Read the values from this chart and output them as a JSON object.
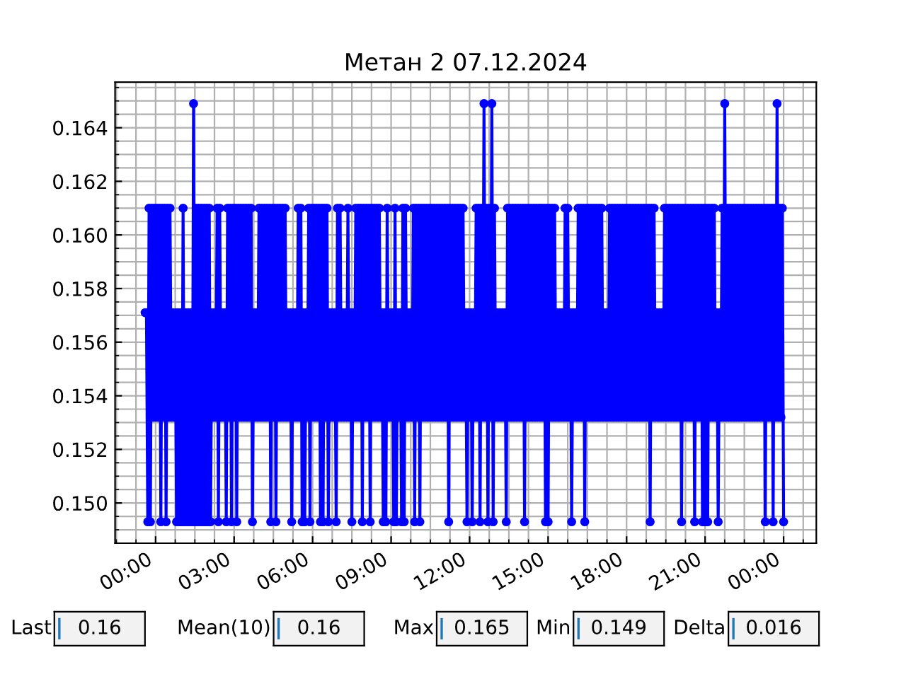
{
  "chart_data": {
    "type": "line",
    "title": "Метан 2 07.12.2024",
    "x": [
      -0.4,
      -0.35,
      -0.3,
      -0.25,
      -0.2,
      -0.15,
      -0.1,
      -0.05,
      0,
      0.05,
      0.1,
      0.15,
      0.2,
      0.25,
      0.3,
      0.35,
      0.4,
      0.45,
      0.5,
      0.55,
      0.6,
      0.65,
      0.7,
      0.75,
      0.8,
      0.85,
      0.9,
      0.95,
      1,
      1.05,
      1.1,
      1.15,
      1.2,
      1.25,
      1.3,
      1.35,
      1.4,
      1.45,
      1.5,
      1.55,
      1.6,
      1.65,
      1.7,
      1.75,
      1.8,
      1.85,
      1.9,
      1.95,
      2,
      2.05,
      2.1,
      2.15,
      2.2,
      2.25,
      2.3,
      2.35,
      2.4,
      2.45,
      2.5,
      2.55,
      2.6,
      2.65,
      2.7,
      2.75,
      2.8,
      2.85,
      2.9,
      2.95,
      3,
      3.05,
      3.1,
      3.15,
      3.2,
      3.25,
      3.3,
      3.35,
      3.4,
      3.45,
      3.5,
      3.55,
      3.6,
      3.65,
      3.7,
      3.75,
      3.8,
      3.85,
      3.9,
      3.95,
      4,
      4.05,
      4.1,
      4.15,
      4.2,
      4.25,
      4.3,
      4.35,
      4.4,
      4.45,
      4.5,
      4.55,
      4.6,
      4.65,
      4.7,
      4.75,
      4.8,
      4.85,
      4.9,
      4.95,
      5,
      5.05,
      5.1,
      5.15,
      5.2,
      5.25,
      5.3,
      5.35,
      5.4,
      5.45,
      5.5,
      5.55,
      5.6,
      5.65,
      5.7,
      5.75,
      5.8,
      5.85,
      5.9,
      5.95,
      6,
      6.05,
      6.1,
      6.15,
      6.2,
      6.25,
      6.3,
      6.35,
      6.4,
      6.45,
      6.5,
      6.55,
      6.6,
      6.65,
      6.7,
      6.75,
      6.8,
      6.85,
      6.9,
      6.95,
      7,
      7.05,
      7.1,
      7.15,
      7.2,
      7.25,
      7.3,
      7.35,
      7.4,
      7.45,
      7.5,
      7.55,
      7.6,
      7.65,
      7.7,
      7.75,
      7.8,
      7.85,
      7.9,
      7.95,
      8,
      8.05,
      8.1,
      8.15,
      8.2,
      8.25,
      8.3,
      8.35,
      8.4,
      8.45,
      8.5,
      8.55,
      8.6,
      8.65,
      8.7,
      8.75,
      8.8,
      8.85,
      8.9,
      8.95,
      9,
      9.05,
      9.1,
      9.15,
      9.2,
      9.25,
      9.3,
      9.35,
      9.4,
      9.45,
      9.5,
      9.55,
      9.6,
      9.65,
      9.7,
      9.75,
      9.8,
      9.85,
      9.9,
      9.95,
      10,
      10.05,
      10.1,
      10.15,
      10.2,
      10.25,
      10.3,
      10.35,
      10.4,
      10.45,
      10.5,
      10.55,
      10.6,
      10.65,
      10.7,
      10.75,
      10.8,
      10.85,
      10.9,
      10.95,
      11,
      11.05,
      11.1,
      11.15,
      11.2,
      11.25,
      11.3,
      11.35,
      11.4,
      11.45,
      11.5,
      11.55,
      11.6,
      11.65,
      11.7,
      11.75,
      11.8,
      11.85,
      11.9,
      11.95,
      12,
      12.05,
      12.1,
      12.15,
      12.2,
      12.25,
      12.3,
      12.35,
      12.4,
      12.45,
      12.5,
      12.55,
      12.6,
      12.65,
      12.7,
      12.75,
      12.8,
      12.85,
      12.9,
      12.95,
      13,
      13.05,
      13.1,
      13.15,
      13.2,
      13.25,
      13.3,
      13.35,
      13.4,
      13.45,
      13.5,
      13.55,
      13.6,
      13.65,
      13.7,
      13.75,
      13.8,
      13.85,
      13.9,
      13.95,
      14,
      14.05,
      14.1,
      14.15,
      14.2,
      14.25,
      14.3,
      14.35,
      14.4,
      14.45,
      14.5,
      14.55,
      14.6,
      14.65,
      14.7,
      14.75,
      14.8,
      14.85,
      14.9,
      14.95,
      15,
      15.05,
      15.1,
      15.15,
      15.2,
      15.25,
      15.3,
      15.35,
      15.4,
      15.45,
      15.5,
      15.55,
      15.6,
      15.65,
      15.7,
      15.75,
      15.8,
      15.85,
      15.9,
      15.95,
      16,
      16.05,
      16.1,
      16.15,
      16.2,
      16.25,
      16.3,
      16.35,
      16.4,
      16.45,
      16.5,
      16.55,
      16.6,
      16.65,
      16.7,
      16.75,
      16.8,
      16.85,
      16.9,
      16.95,
      17,
      17.05,
      17.1,
      17.15,
      17.2,
      17.25,
      17.3,
      17.35,
      17.4,
      17.45,
      17.5,
      17.55,
      17.6,
      17.65,
      17.7,
      17.75,
      17.8,
      17.85,
      17.9,
      17.95,
      18,
      18.05,
      18.1,
      18.15,
      18.2,
      18.25,
      18.3,
      18.35,
      18.4,
      18.45,
      18.5,
      18.55,
      18.6,
      18.65,
      18.7,
      18.75,
      18.8,
      18.85,
      18.9,
      18.95,
      19,
      19.05,
      19.1,
      19.15,
      19.2,
      19.25,
      19.3,
      19.35,
      19.4,
      19.45,
      19.5,
      19.55,
      19.6,
      19.65,
      19.7,
      19.75,
      19.8,
      19.85,
      19.9,
      19.95,
      20,
      20.05,
      20.1,
      20.15,
      20.2,
      20.25,
      20.3,
      20.35,
      20.4,
      20.45,
      20.5,
      20.55,
      20.6,
      20.65,
      20.7,
      20.75,
      20.8,
      20.85,
      20.9,
      20.95,
      21,
      21.05,
      21.1,
      21.15,
      21.2,
      21.25,
      21.3,
      21.35,
      21.4,
      21.45,
      21.5,
      21.55,
      21.6,
      21.65,
      21.7,
      21.75,
      21.8,
      21.85,
      21.9,
      21.95,
      22,
      22.05,
      22.1,
      22.15,
      22.2,
      22.25,
      22.3,
      22.35,
      22.4,
      22.45,
      22.5,
      22.55,
      22.6,
      22.65,
      22.7,
      22.75,
      22.8,
      22.85,
      22.9,
      22.95,
      23,
      23.05,
      23.1,
      23.15,
      23.2,
      23.25,
      23.3,
      23.35,
      23.4,
      23.45,
      23.5,
      23.55,
      23.6,
      23.65,
      23.7,
      23.75,
      23.8,
      23.85,
      23.9,
      23.95,
      24
    ],
    "series": [
      {
        "color": "#0000ff",
        "values": [
          0.1571,
          0.1571,
          0.1493,
          0.161,
          0.1493,
          0.161,
          0.1532,
          0.161,
          0.1532,
          0.161,
          0.1532,
          0.161,
          0.1493,
          0.161,
          0.1532,
          0.161,
          0.1493,
          0.161,
          0.1532,
          0.161,
          0.1532,
          0.1571,
          0.1532,
          0.1571,
          0.1493,
          0.1571,
          0.1493,
          0.1571,
          0.1493,
          0.161,
          0.1493,
          0.1571,
          0.1493,
          0.1571,
          0.1493,
          0.1571,
          0.1493,
          0.1649,
          0.1493,
          0.161,
          0.1493,
          0.161,
          0.1493,
          0.161,
          0.1493,
          0.161,
          0.1493,
          0.161,
          0.1493,
          0.161,
          0.1493,
          0.1571,
          0.1532,
          0.1571,
          0.1532,
          0.161,
          0.1493,
          0.161,
          0.1532,
          0.1571,
          0.1532,
          0.1571,
          0.1493,
          0.161,
          0.1532,
          0.161,
          0.1493,
          0.161,
          0.1532,
          0.161,
          0.1493,
          0.161,
          0.1532,
          0.161,
          0.1532,
          0.161,
          0.1532,
          0.161,
          0.1532,
          0.161,
          0.1532,
          0.161,
          0.1493,
          0.1571,
          0.1532,
          0.1571,
          0.1532,
          0.161,
          0.1532,
          0.161,
          0.1532,
          0.161,
          0.1532,
          0.161,
          0.1532,
          0.161,
          0.1493,
          0.161,
          0.1532,
          0.161,
          0.1493,
          0.161,
          0.1532,
          0.161,
          0.1532,
          0.161,
          0.1532,
          0.161,
          0.1532,
          0.1571,
          0.1532,
          0.1571,
          0.1493,
          0.1571,
          0.1532,
          0.1571,
          0.1532,
          0.161,
          0.1532,
          0.161,
          0.1493,
          0.1571,
          0.1493,
          0.1571,
          0.1532,
          0.161,
          0.1493,
          0.161,
          0.1532,
          0.161,
          0.1532,
          0.161,
          0.1532,
          0.161,
          0.1493,
          0.161,
          0.1493,
          0.161,
          0.1532,
          0.161,
          0.1493,
          0.1571,
          0.1532,
          0.1571,
          0.1532,
          0.1571,
          0.1493,
          0.161,
          0.1532,
          0.161,
          0.1532,
          0.1571,
          0.1532,
          0.1571,
          0.1532,
          0.161,
          0.1532,
          0.1571,
          0.1493,
          0.1571,
          0.1532,
          0.161,
          0.1532,
          0.161,
          0.1532,
          0.161,
          0.1493,
          0.161,
          0.1532,
          0.161,
          0.1532,
          0.161,
          0.1493,
          0.161,
          0.1532,
          0.161,
          0.1532,
          0.161,
          0.1532,
          0.161,
          0.1532,
          0.1571,
          0.1493,
          0.1571,
          0.1493,
          0.161,
          0.1532,
          0.1571,
          0.1532,
          0.1571,
          0.1493,
          0.161,
          0.1493,
          0.1571,
          0.1532,
          0.1571,
          0.1493,
          0.161,
          0.1493,
          0.161,
          0.1532,
          0.1571,
          0.1532,
          0.1571,
          0.1532,
          0.161,
          0.1493,
          0.161,
          0.1532,
          0.161,
          0.1493,
          0.161,
          0.1532,
          0.161,
          0.1532,
          0.161,
          0.1532,
          0.161,
          0.1532,
          0.161,
          0.1532,
          0.161,
          0.1532,
          0.161,
          0.1532,
          0.161,
          0.1532,
          0.161,
          0.1532,
          0.161,
          0.1532,
          0.161,
          0.1493,
          0.161,
          0.1532,
          0.161,
          0.1532,
          0.161,
          0.1532,
          0.161,
          0.1532,
          0.161,
          0.1532,
          0.161,
          0.1532,
          0.1571,
          0.1493,
          0.1571,
          0.1532,
          0.1571,
          0.1493,
          0.1571,
          0.1532,
          0.161,
          0.1532,
          0.161,
          0.1493,
          0.161,
          0.1532,
          0.1649,
          0.1532,
          0.161,
          0.1493,
          0.161,
          0.1532,
          0.1649,
          0.1493,
          0.161,
          0.1532,
          0.1571,
          0.1532,
          0.1571,
          0.1532,
          0.1571,
          0.1532,
          0.1571,
          0.1493,
          0.161,
          0.1532,
          0.161,
          0.1532,
          0.161,
          0.1532,
          0.161,
          0.1532,
          0.161,
          0.1532,
          0.161,
          0.1532,
          0.161,
          0.1493,
          0.161,
          0.1532,
          0.161,
          0.1532,
          0.161,
          0.1532,
          0.161,
          0.1532,
          0.161,
          0.1532,
          0.161,
          0.1532,
          0.161,
          0.1532,
          0.161,
          0.1493,
          0.161,
          0.1493,
          0.161,
          0.1532,
          0.161,
          0.1532,
          0.161,
          0.1532,
          0.1571,
          0.1532,
          0.1571,
          0.1532,
          0.1571,
          0.1532,
          0.161,
          0.1532,
          0.161,
          0.1532,
          0.1571,
          0.1493,
          0.1571,
          0.1532,
          0.1571,
          0.1532,
          0.161,
          0.1532,
          0.161,
          0.1532,
          0.161,
          0.1493,
          0.161,
          0.1532,
          0.161,
          0.1532,
          0.161,
          0.1532,
          0.161,
          0.1532,
          0.161,
          0.1532,
          0.161,
          0.1532,
          0.161,
          0.1532,
          0.1571,
          0.1532,
          0.1571,
          0.1532,
          0.161,
          0.1532,
          0.161,
          0.1532,
          0.161,
          0.1532,
          0.161,
          0.1532,
          0.161,
          0.1532,
          0.161,
          0.1532,
          0.161,
          0.1532,
          0.161,
          0.1532,
          0.161,
          0.1532,
          0.161,
          0.1532,
          0.161,
          0.1532,
          0.161,
          0.1532,
          0.161,
          0.1532,
          0.161,
          0.1532,
          0.161,
          0.1532,
          0.161,
          0.1493,
          0.161,
          0.1532,
          0.161,
          0.1532,
          0.1571,
          0.1532,
          0.1571,
          0.1532,
          0.1571,
          0.1532,
          0.161,
          0.1532,
          0.161,
          0.1532,
          0.161,
          0.1532,
          0.161,
          0.1532,
          0.161,
          0.1532,
          0.161,
          0.1532,
          0.161,
          0.1493,
          0.161,
          0.1532,
          0.161,
          0.1532,
          0.161,
          0.1532,
          0.161,
          0.1532,
          0.161,
          0.1493,
          0.161,
          0.1532,
          0.161,
          0.1532,
          0.161,
          0.1493,
          0.161,
          0.1493,
          0.161,
          0.1493,
          0.161,
          0.1532,
          0.161,
          0.1532,
          0.161,
          0.1532,
          0.1571,
          0.1493,
          0.1571,
          0.1532,
          0.161,
          0.1532,
          0.1649,
          0.1532,
          0.161,
          0.1532,
          0.161,
          0.1532,
          0.161,
          0.1532,
          0.161,
          0.1532,
          0.161,
          0.1532,
          0.161,
          0.1532,
          0.161,
          0.1532,
          0.161,
          0.1532,
          0.161,
          0.1532,
          0.161,
          0.1532,
          0.161,
          0.1532,
          0.161,
          0.1532,
          0.161,
          0.1532,
          0.161,
          0.1532,
          0.161,
          0.1493,
          0.161,
          0.1532,
          0.161,
          0.1532,
          0.161,
          0.1493,
          0.161,
          0.1532,
          0.1649,
          0.1532,
          0.161,
          0.1532,
          0.161,
          0.1493
        ]
      }
    ],
    "xlim": [
      -1.55,
      25.25
    ],
    "xticks": [
      {
        "value": 0,
        "label": "00:00"
      },
      {
        "value": 3,
        "label": "03:00"
      },
      {
        "value": 6,
        "label": "06:00"
      },
      {
        "value": 9,
        "label": "09:00"
      },
      {
        "value": 12,
        "label": "12:00"
      },
      {
        "value": 15,
        "label": "15:00"
      },
      {
        "value": 18,
        "label": "18:00"
      },
      {
        "value": 21,
        "label": "21:00"
      },
      {
        "value": 24,
        "label": "00:00"
      }
    ],
    "ylim": [
      0.1485,
      0.1657
    ],
    "yticks": [
      {
        "value": 0.15,
        "label": "0.150"
      },
      0.152,
      0.154,
      0.156,
      0.158,
      {
        "value": 0.16,
        "label": "0.160"
      },
      0.162,
      0.164
    ],
    "grid": true,
    "marker": "circle",
    "line_style": "solid",
    "annotations": [
      "Last",
      "0.16",
      "Mean(10)",
      "0.16",
      "Max",
      "0.165",
      "Min",
      "0.149",
      "Delta",
      "0.016"
    ]
  }
}
